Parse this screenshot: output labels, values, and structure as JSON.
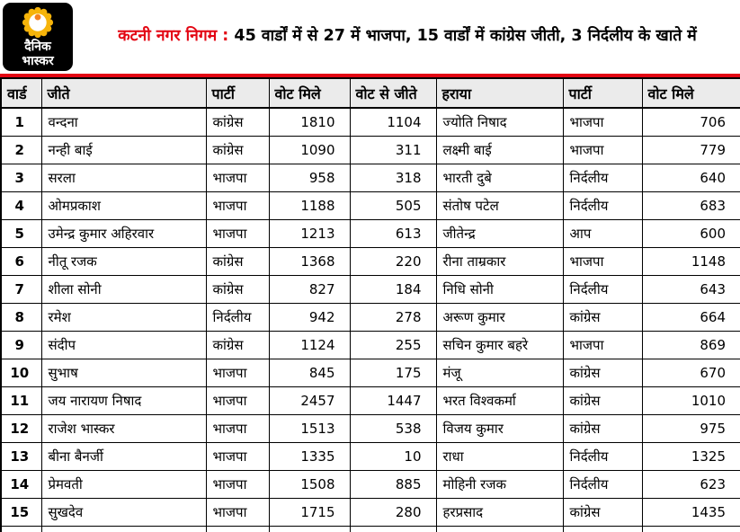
{
  "colors": {
    "brand_red": "#e30613",
    "logo_black": "#000000",
    "sun_yellow": "#f6b40a",
    "sun_orange": "#f58220",
    "header_gray": "#ebebeb"
  },
  "header": {
    "logo": {
      "line1": "दैनिक",
      "line2": "भास्कर",
      "icon": "sun-icon"
    },
    "title_highlight": "कटनी नगर निगम :",
    "title_rest": " 45 वार्डों में से 27 में भाजपा, 15 वार्डों में कांग्रेस जीती, 3 निर्दलीय के खाते में"
  },
  "table": {
    "columns": [
      "वार्ड",
      "जीते",
      "पार्टी",
      "वोट मिले",
      "वोट से जीते",
      "हराया",
      "पार्टी",
      "वोट मिले"
    ],
    "rows": [
      {
        "ward": "1",
        "winner": "वन्दना",
        "winner_party": "कांग्रेस",
        "winner_votes": "1810",
        "margin": "1104",
        "loser": "ज्योति निषाद",
        "loser_party": "भाजपा",
        "loser_votes": "706"
      },
      {
        "ward": "2",
        "winner": "नन्ही बाई",
        "winner_party": "कांग्रेस",
        "winner_votes": "1090",
        "margin": "311",
        "loser": "लक्ष्मी बाई",
        "loser_party": "भाजपा",
        "loser_votes": "779"
      },
      {
        "ward": "3",
        "winner": "सरला",
        "winner_party": "भाजपा",
        "winner_votes": "958",
        "margin": "318",
        "loser": "भारती दुबे",
        "loser_party": "निर्दलीय",
        "loser_votes": "640"
      },
      {
        "ward": "4",
        "winner": "ओमप्रकाश",
        "winner_party": "भाजपा",
        "winner_votes": "1188",
        "margin": "505",
        "loser": "संतोष पटेल",
        "loser_party": "निर्दलीय",
        "loser_votes": "683"
      },
      {
        "ward": "5",
        "winner": "उमेन्द्र कुमार अहिरवार",
        "winner_party": "भाजपा",
        "winner_votes": "1213",
        "margin": "613",
        "loser": "जीतेन्द्र",
        "loser_party": "आप",
        "loser_votes": "600"
      },
      {
        "ward": "6",
        "winner": "नीतू रजक",
        "winner_party": "कांग्रेस",
        "winner_votes": "1368",
        "margin": "220",
        "loser": "रीना ताम्रकार",
        "loser_party": "भाजपा",
        "loser_votes": "1148"
      },
      {
        "ward": "7",
        "winner": "शीला सोनी",
        "winner_party": "कांग्रेस",
        "winner_votes": "827",
        "margin": "184",
        "loser": "निधि सोनी",
        "loser_party": "निर्दलीय",
        "loser_votes": "643"
      },
      {
        "ward": "8",
        "winner": "रमेश",
        "winner_party": "निर्दलीय",
        "winner_votes": "942",
        "margin": "278",
        "loser": "अरूण कुमार",
        "loser_party": "कांग्रेस",
        "loser_votes": "664"
      },
      {
        "ward": "9",
        "winner": "संदीप",
        "winner_party": "कांग्रेस",
        "winner_votes": "1124",
        "margin": "255",
        "loser": "सचिन कुमार बहरे",
        "loser_party": "भाजपा",
        "loser_votes": "869"
      },
      {
        "ward": "10",
        "winner": "सुभाष",
        "winner_party": "भाजपा",
        "winner_votes": "845",
        "margin": "175",
        "loser": "मंजू",
        "loser_party": "कांग्रेस",
        "loser_votes": "670"
      },
      {
        "ward": "11",
        "winner": "जय नारायण निषाद",
        "winner_party": "भाजपा",
        "winner_votes": "2457",
        "margin": "1447",
        "loser": "भरत विश्वकर्मा",
        "loser_party": "कांग्रेस",
        "loser_votes": "1010"
      },
      {
        "ward": "12",
        "winner": "राजेश भास्कर",
        "winner_party": "भाजपा",
        "winner_votes": "1513",
        "margin": "538",
        "loser": "विजय कुमार",
        "loser_party": "कांग्रेस",
        "loser_votes": "975"
      },
      {
        "ward": "13",
        "winner": "बीना बैनर्जी",
        "winner_party": "भाजपा",
        "winner_votes": "1335",
        "margin": "10",
        "loser": "राधा",
        "loser_party": "निर्दलीय",
        "loser_votes": "1325"
      },
      {
        "ward": "14",
        "winner": "प्रेमवती",
        "winner_party": "भाजपा",
        "winner_votes": "1508",
        "margin": "885",
        "loser": "मोहिनी रजक",
        "loser_party": "निर्दलीय",
        "loser_votes": "623"
      },
      {
        "ward": "15",
        "winner": "सुखदेव",
        "winner_party": "भाजपा",
        "winner_votes": "1715",
        "margin": "280",
        "loser": "हरप्रसाद",
        "loser_party": "कांग्रेस",
        "loser_votes": "1435"
      }
    ]
  }
}
